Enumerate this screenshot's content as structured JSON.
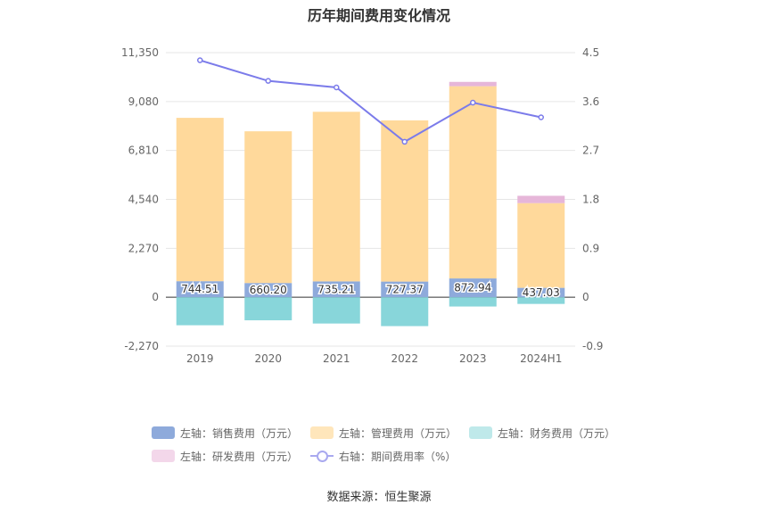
{
  "title": "历年期间费用变化情况",
  "source": "数据来源：恒生聚源",
  "legend": {
    "row1": [
      {
        "name": "左轴：销售费用（万元）",
        "color": "#8eaadb"
      },
      {
        "name": "左轴：管理费用（万元）",
        "color": "#ffe6bb"
      },
      {
        "name": "左轴：财务费用（万元）",
        "color": "#bfe9ea"
      }
    ],
    "row2": [
      {
        "name": "左轴：研发费用（万元）",
        "color": "#f3d7ea"
      },
      {
        "name": "右轴：期间费用率（%）",
        "color": "#a9a9ef"
      }
    ]
  },
  "chart_data": {
    "type": "bar",
    "stacked": true,
    "categories": [
      "2019",
      "2020",
      "2021",
      "2022",
      "2023",
      "2024H1"
    ],
    "left_axis": {
      "min": -2270,
      "max": 11350,
      "ticks": [
        -2270,
        0,
        2270,
        4540,
        6810,
        9080,
        11350
      ],
      "tick_labels": [
        "-2,270",
        "0",
        "2,270",
        "4,540",
        "6,810",
        "9,080",
        "11,350"
      ]
    },
    "right_axis": {
      "min": -0.9,
      "max": 4.5,
      "ticks": [
        -0.9,
        0,
        0.9,
        1.8,
        2.7,
        3.6,
        4.5
      ],
      "tick_labels": [
        "-0.9",
        "0",
        "0.9",
        "1.8",
        "2.7",
        "3.6",
        "4.5"
      ]
    },
    "series": [
      {
        "name": "左轴：销售费用（万元）",
        "color": "#8eaadb",
        "values": [
          744.51,
          660.2,
          735.21,
          727.37,
          872.94,
          437.03
        ],
        "labels": [
          "744.51",
          "660.20",
          "735.21",
          "727.37",
          "872.94",
          "437.03"
        ]
      },
      {
        "name": "左轴：管理费用（万元）",
        "color": "#ffd99b",
        "values": [
          7580,
          7040,
          7870,
          7480,
          8920,
          3930
        ]
      },
      {
        "name": "左轴：财务费用（万元）",
        "color": "#88d6da",
        "values": [
          -1300,
          -1070,
          -1220,
          -1340,
          -430,
          -310
        ]
      },
      {
        "name": "左轴：研发费用（万元）",
        "color": "#e6b6d9",
        "values": [
          0,
          0,
          0,
          0,
          200,
          340
        ]
      },
      {
        "name": "右轴：期间费用率（%）",
        "color": "#7b7bea",
        "axis": "right",
        "type": "line",
        "values": [
          4.36,
          3.98,
          3.86,
          2.86,
          3.58,
          3.31
        ]
      }
    ],
    "grid": true
  }
}
